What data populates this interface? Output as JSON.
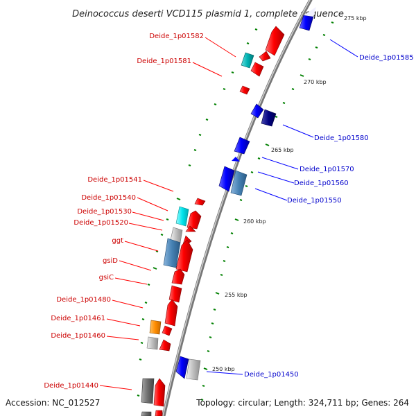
{
  "title": "Deinococcus deserti VCD115 plasmid 1, complete sequence",
  "footer": {
    "accession": "Accession: NC_012527",
    "summary": "Topology: circular; Length: 324,711 bp; Genes: 264"
  },
  "colors": {
    "forward": "#ff0000",
    "forward_label": "#cc0000",
    "reverse": "#0000ff",
    "reverse_label": "#0000cc",
    "navy": "#000080",
    "steel_blue": "#4682b4",
    "cyan": "#00e5ee",
    "dark_cyan": "#00b3b3",
    "gray": "#bdbdbd",
    "dark_gray": "#6e6e6e",
    "orange": "#ff8c00",
    "backbone": "#888888",
    "gc_tick": "#008000"
  },
  "ticks": [
    "275 kbp",
    "270 kbp",
    "265 kbp",
    "260 kbp",
    "255 kbp",
    "250 kbp"
  ],
  "labels_forward": [
    "Deide_1p01582",
    "Deide_1p01581",
    "Deide_1p01541",
    "Deide_1p01540",
    "Deide_1p01530",
    "Deide_1p01520",
    "ggt",
    "gsiD",
    "gsiC",
    "Deide_1p01480",
    "Deide_1p01461",
    "Deide_1p01460",
    "Deide_1p01440"
  ],
  "labels_reverse": [
    "Deide_1p01585",
    "Deide_1p01580",
    "Deide_1p01570",
    "Deide_1p01560",
    "Deide_1p01550",
    "Deide_1p01450"
  ]
}
